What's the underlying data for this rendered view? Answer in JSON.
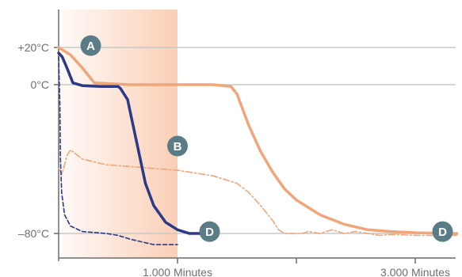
{
  "chart_data": {
    "type": "line",
    "title": "",
    "xlabel": "",
    "ylabel": "",
    "xlim": [
      0,
      3350
    ],
    "ylim": [
      -89,
      37
    ],
    "x_ticks": [
      {
        "value": 1000,
        "label": "1.000 Minutes"
      },
      {
        "value": 2000,
        "label": ""
      },
      {
        "value": 3000,
        "label": "3.000 Minutes"
      }
    ],
    "y_ticks": [
      {
        "value": 20,
        "label": "+20°C"
      },
      {
        "value": 0,
        "label": "0°C"
      },
      {
        "value": -80,
        "label": "–80°C"
      }
    ],
    "horizontal_gridlines": [
      20,
      0,
      -80
    ],
    "shaded_region": {
      "x_start": 0,
      "x_end": 1000,
      "color": "#f6a77a"
    },
    "series": [
      {
        "color": "#f0a679",
        "style": "solid",
        "points": [
          [
            0,
            20
          ],
          [
            100,
            16
          ],
          [
            200,
            9
          ],
          [
            300,
            1
          ],
          [
            600,
            0
          ],
          [
            1000,
            0
          ],
          [
            1300,
            0
          ],
          [
            1450,
            -1
          ],
          [
            1500,
            -5
          ],
          [
            1600,
            -22
          ],
          [
            1700,
            -36
          ],
          [
            1800,
            -47
          ],
          [
            1900,
            -56
          ],
          [
            2000,
            -62
          ],
          [
            2200,
            -70
          ],
          [
            2400,
            -75
          ],
          [
            2600,
            -78
          ],
          [
            2800,
            -79
          ],
          [
            3000,
            -79.6
          ],
          [
            3350,
            -80
          ]
        ]
      },
      {
        "color": "#f0a679",
        "style": "dash-dot",
        "points": [
          [
            0,
            -45
          ],
          [
            30,
            -48
          ],
          [
            70,
            -38
          ],
          [
            100,
            -35
          ],
          [
            200,
            -40
          ],
          [
            400,
            -43
          ],
          [
            600,
            -44
          ],
          [
            800,
            -45
          ],
          [
            1000,
            -46
          ],
          [
            1300,
            -49
          ],
          [
            1500,
            -53
          ],
          [
            1600,
            -58
          ],
          [
            1700,
            -65
          ],
          [
            1800,
            -73
          ],
          [
            1850,
            -78
          ],
          [
            1900,
            -80
          ],
          [
            2050,
            -80
          ],
          [
            2100,
            -79
          ],
          [
            2200,
            -80
          ],
          [
            2300,
            -78
          ],
          [
            2400,
            -80
          ],
          [
            2500,
            -79
          ],
          [
            2600,
            -80
          ],
          [
            2700,
            -81
          ],
          [
            2800,
            -80.5
          ],
          [
            3000,
            -81
          ],
          [
            3350,
            -81
          ]
        ]
      },
      {
        "color": "#2c3888",
        "style": "solid",
        "points": [
          [
            0,
            17
          ],
          [
            30,
            15
          ],
          [
            70,
            9
          ],
          [
            120,
            1
          ],
          [
            200,
            -0.5
          ],
          [
            350,
            -1
          ],
          [
            500,
            -1
          ],
          [
            520,
            -2
          ],
          [
            580,
            -8
          ],
          [
            620,
            -20
          ],
          [
            680,
            -38
          ],
          [
            730,
            -53
          ],
          [
            800,
            -65
          ],
          [
            900,
            -74
          ],
          [
            1000,
            -78
          ],
          [
            1100,
            -80
          ],
          [
            1200,
            -80
          ]
        ]
      },
      {
        "color": "#2c3888",
        "style": "dashed",
        "points": [
          [
            0,
            15
          ],
          [
            10,
            -10
          ],
          [
            15,
            -40
          ],
          [
            25,
            -58
          ],
          [
            50,
            -70
          ],
          [
            100,
            -76
          ],
          [
            200,
            -79
          ],
          [
            400,
            -80
          ],
          [
            500,
            -81
          ],
          [
            600,
            -83
          ],
          [
            800,
            -86
          ],
          [
            1000,
            -86
          ]
        ]
      }
    ],
    "markers": [
      {
        "label": "A",
        "x": 270,
        "y": 21
      },
      {
        "label": "B",
        "x": 1000,
        "y": -33
      },
      {
        "label": "D",
        "x": 1270,
        "y": -79
      },
      {
        "label": "D",
        "x": 3230,
        "y": -79
      }
    ],
    "marker_color": "#5b7c85"
  }
}
